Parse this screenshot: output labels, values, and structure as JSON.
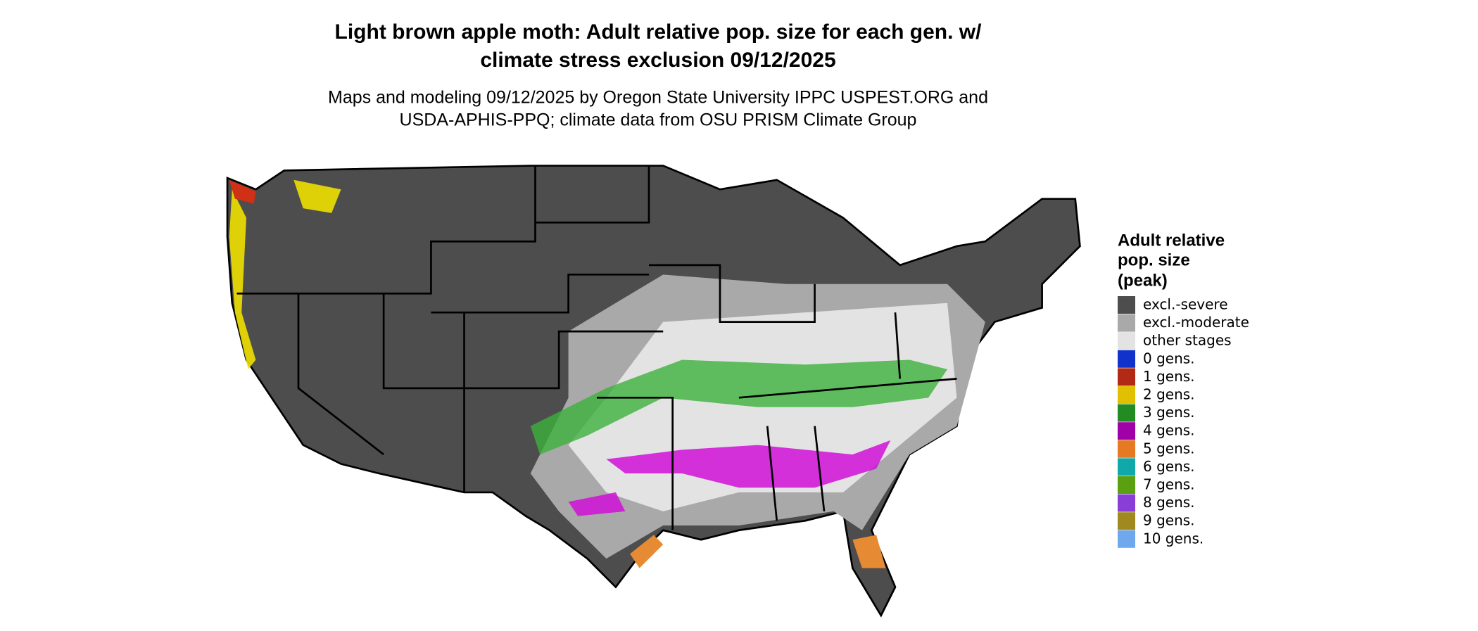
{
  "header": {
    "title": [
      "Light brown apple moth: Adult relative pop. size for each gen. w/",
      "climate stress exclusion 09/12/2025"
    ],
    "subtitle": [
      "Maps and modeling 09/12/2025 by Oregon State University IPPC USPEST.ORG and",
      "USDA-APHIS-PPQ; climate data from OSU PRISM Climate Group"
    ]
  },
  "legend": {
    "title": [
      "Adult relative",
      "pop. size",
      "(peak)"
    ],
    "items": [
      {
        "label": "excl.-severe",
        "color": "#4d4d4d"
      },
      {
        "label": "excl.-moderate",
        "color": "#a9a9a9"
      },
      {
        "label": "other stages",
        "color": "#e3e3e3"
      },
      {
        "label": "0 gens.",
        "color": "#1133cc"
      },
      {
        "label": "1 gens.",
        "color": "#b22a15"
      },
      {
        "label": "2 gens.",
        "color": "#e0c000"
      },
      {
        "label": "3 gens.",
        "color": "#228b22"
      },
      {
        "label": "4 gens.",
        "color": "#a000a8"
      },
      {
        "label": "5 gens.",
        "color": "#e67a22"
      },
      {
        "label": "6 gens.",
        "color": "#10a8a8"
      },
      {
        "label": "7 gens.",
        "color": "#5aa010"
      },
      {
        "label": "8 gens.",
        "color": "#8a3ed8"
      },
      {
        "label": "9 gens.",
        "color": "#a08a20"
      },
      {
        "label": "10 gens.",
        "color": "#70a8ee"
      }
    ]
  }
}
